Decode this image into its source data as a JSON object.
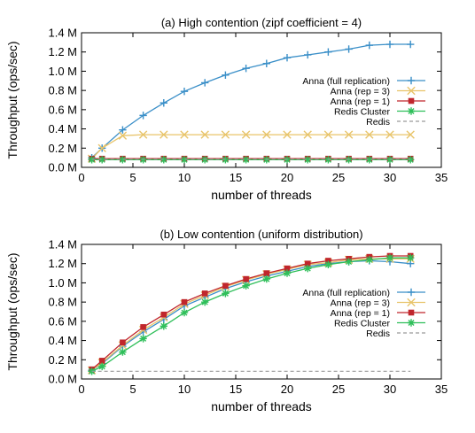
{
  "colors": {
    "anna_full": "#3a8fc8",
    "anna_rep3": "#e8c46a",
    "anna_rep1": "#c0262c",
    "redis_cluster": "#2fbf5a",
    "redis": "#9a9a9a",
    "axis": "#000000"
  },
  "chart_data": [
    {
      "type": "line",
      "title": "(a) High contention (zipf coefficient = 4)",
      "xlabel": "number of threads",
      "ylabel": "Throughput (ops/sec)",
      "xlim": [
        0,
        35
      ],
      "ylim": [
        0,
        1400000
      ],
      "x_ticks": [
        "0",
        "5",
        "10",
        "15",
        "20",
        "25",
        "30",
        "35"
      ],
      "y_ticks": [
        "0.0 M",
        "0.2 M",
        "0.4 M",
        "0.6 M",
        "0.8 M",
        "1.0 M",
        "1.2 M",
        "1.4 M"
      ],
      "legend_position": "right",
      "grid": false,
      "series": [
        {
          "name": "Anna (full replication)",
          "marker": "plus",
          "line": "solid",
          "color_key": "anna_full",
          "x": [
            1,
            2,
            4,
            6,
            8,
            10,
            12,
            14,
            16,
            18,
            20,
            22,
            24,
            26,
            28,
            30,
            32
          ],
          "y": [
            100000,
            200000,
            390000,
            540000,
            670000,
            790000,
            880000,
            960000,
            1030000,
            1080000,
            1140000,
            1170000,
            1200000,
            1230000,
            1270000,
            1280000,
            1280000
          ]
        },
        {
          "name": "Anna (rep = 3)",
          "marker": "cross",
          "line": "solid",
          "color_key": "anna_rep3",
          "x": [
            1,
            2,
            4,
            6,
            8,
            10,
            12,
            14,
            16,
            18,
            20,
            22,
            24,
            26,
            28,
            30,
            32
          ],
          "y": [
            90000,
            200000,
            330000,
            340000,
            340000,
            340000,
            340000,
            340000,
            340000,
            340000,
            340000,
            340000,
            340000,
            340000,
            340000,
            340000,
            340000
          ]
        },
        {
          "name": "Anna (rep = 1)",
          "marker": "square",
          "line": "solid",
          "color_key": "anna_rep1",
          "x": [
            1,
            2,
            4,
            6,
            8,
            10,
            12,
            14,
            16,
            18,
            20,
            22,
            24,
            26,
            28,
            30,
            32
          ],
          "y": [
            90000,
            90000,
            90000,
            90000,
            90000,
            90000,
            90000,
            90000,
            90000,
            90000,
            90000,
            90000,
            90000,
            90000,
            90000,
            90000,
            90000
          ]
        },
        {
          "name": "Redis Cluster",
          "marker": "star",
          "line": "solid",
          "color_key": "redis_cluster",
          "x": [
            1,
            2,
            4,
            6,
            8,
            10,
            12,
            14,
            16,
            18,
            20,
            22,
            24,
            26,
            28,
            30,
            32
          ],
          "y": [
            80000,
            80000,
            80000,
            80000,
            80000,
            80000,
            80000,
            80000,
            80000,
            80000,
            80000,
            80000,
            80000,
            80000,
            80000,
            80000,
            80000
          ]
        },
        {
          "name": "Redis",
          "marker": "none",
          "line": "dashed",
          "color_key": "redis",
          "x": [
            1,
            32
          ],
          "y": [
            85000,
            85000
          ]
        }
      ]
    },
    {
      "type": "line",
      "title": "(b) Low contention (uniform distribution)",
      "xlabel": "number of threads",
      "ylabel": "Throughput (ops/sec)",
      "xlim": [
        0,
        35
      ],
      "ylim": [
        0,
        1400000
      ],
      "x_ticks": [
        "0",
        "5",
        "10",
        "15",
        "20",
        "25",
        "30",
        "35"
      ],
      "y_ticks": [
        "0.0 M",
        "0.2 M",
        "0.4 M",
        "0.6 M",
        "0.8 M",
        "1.0 M",
        "1.2 M",
        "1.4 M"
      ],
      "legend_position": "right",
      "grid": false,
      "series": [
        {
          "name": "Anna (full replication)",
          "marker": "plus",
          "line": "solid",
          "color_key": "anna_full",
          "x": [
            1,
            2,
            4,
            6,
            8,
            10,
            12,
            14,
            16,
            18,
            20,
            22,
            24,
            26,
            28,
            30,
            32
          ],
          "y": [
            90000,
            160000,
            340000,
            490000,
            620000,
            760000,
            850000,
            940000,
            1010000,
            1070000,
            1120000,
            1170000,
            1200000,
            1220000,
            1230000,
            1220000,
            1200000
          ]
        },
        {
          "name": "Anna (rep = 3)",
          "marker": "cross",
          "line": "solid",
          "color_key": "anna_rep3",
          "x": [
            1,
            2,
            4,
            6,
            8,
            10,
            12,
            14,
            16,
            18,
            20,
            22,
            24,
            26,
            28,
            30,
            32
          ],
          "y": [
            90000,
            170000,
            350000,
            510000,
            640000,
            780000,
            870000,
            960000,
            1030000,
            1090000,
            1140000,
            1190000,
            1210000,
            1240000,
            1250000,
            1250000,
            1250000
          ]
        },
        {
          "name": "Anna (rep = 1)",
          "marker": "square",
          "line": "solid",
          "color_key": "anna_rep1",
          "x": [
            1,
            2,
            4,
            6,
            8,
            10,
            12,
            14,
            16,
            18,
            20,
            22,
            24,
            26,
            28,
            30,
            32
          ],
          "y": [
            100000,
            190000,
            380000,
            540000,
            670000,
            800000,
            890000,
            970000,
            1040000,
            1100000,
            1150000,
            1200000,
            1230000,
            1250000,
            1270000,
            1280000,
            1280000
          ]
        },
        {
          "name": "Redis Cluster",
          "marker": "star",
          "line": "solid",
          "color_key": "redis_cluster",
          "x": [
            1,
            2,
            4,
            6,
            8,
            10,
            12,
            14,
            16,
            18,
            20,
            22,
            24,
            26,
            28,
            30,
            32
          ],
          "y": [
            80000,
            130000,
            280000,
            420000,
            550000,
            690000,
            800000,
            890000,
            970000,
            1040000,
            1100000,
            1150000,
            1190000,
            1220000,
            1240000,
            1260000,
            1260000
          ]
        },
        {
          "name": "Redis",
          "marker": "none",
          "line": "dashed",
          "color_key": "redis",
          "x": [
            1,
            32
          ],
          "y": [
            80000,
            80000
          ]
        }
      ]
    }
  ]
}
